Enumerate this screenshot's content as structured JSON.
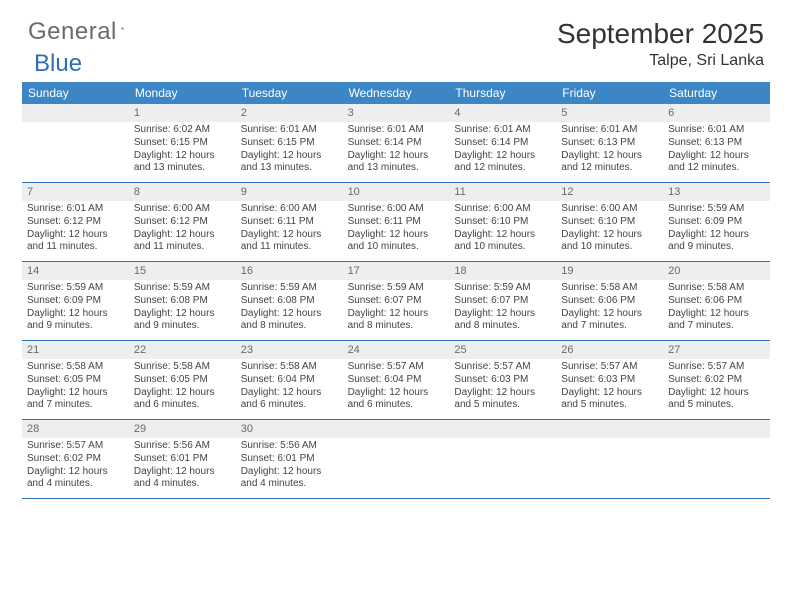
{
  "logo": {
    "part1": "General",
    "part2": "Blue"
  },
  "title": "September 2025",
  "location": "Talpe, Sri Lanka",
  "colors": {
    "header_bg": "#3d86c6",
    "week_border": "#2f6fb5",
    "daynum_bg": "#eceeef",
    "daynum_color": "#6a6a6a",
    "text": "#333333",
    "logo_gray": "#6b6b6b",
    "logo_blue": "#2f6fb5"
  },
  "typography": {
    "title_size_pt": 21,
    "location_size_pt": 12,
    "header_size_pt": 9,
    "cell_size_pt": 7.5
  },
  "day_headers": [
    "Sunday",
    "Monday",
    "Tuesday",
    "Wednesday",
    "Thursday",
    "Friday",
    "Saturday"
  ],
  "weeks": [
    [
      {
        "num": "",
        "empty": true
      },
      {
        "num": "1",
        "sunrise": "Sunrise: 6:02 AM",
        "sunset": "Sunset: 6:15 PM",
        "day1": "Daylight: 12 hours",
        "day2": "and 13 minutes."
      },
      {
        "num": "2",
        "sunrise": "Sunrise: 6:01 AM",
        "sunset": "Sunset: 6:15 PM",
        "day1": "Daylight: 12 hours",
        "day2": "and 13 minutes."
      },
      {
        "num": "3",
        "sunrise": "Sunrise: 6:01 AM",
        "sunset": "Sunset: 6:14 PM",
        "day1": "Daylight: 12 hours",
        "day2": "and 13 minutes."
      },
      {
        "num": "4",
        "sunrise": "Sunrise: 6:01 AM",
        "sunset": "Sunset: 6:14 PM",
        "day1": "Daylight: 12 hours",
        "day2": "and 12 minutes."
      },
      {
        "num": "5",
        "sunrise": "Sunrise: 6:01 AM",
        "sunset": "Sunset: 6:13 PM",
        "day1": "Daylight: 12 hours",
        "day2": "and 12 minutes."
      },
      {
        "num": "6",
        "sunrise": "Sunrise: 6:01 AM",
        "sunset": "Sunset: 6:13 PM",
        "day1": "Daylight: 12 hours",
        "day2": "and 12 minutes."
      }
    ],
    [
      {
        "num": "7",
        "sunrise": "Sunrise: 6:01 AM",
        "sunset": "Sunset: 6:12 PM",
        "day1": "Daylight: 12 hours",
        "day2": "and 11 minutes."
      },
      {
        "num": "8",
        "sunrise": "Sunrise: 6:00 AM",
        "sunset": "Sunset: 6:12 PM",
        "day1": "Daylight: 12 hours",
        "day2": "and 11 minutes."
      },
      {
        "num": "9",
        "sunrise": "Sunrise: 6:00 AM",
        "sunset": "Sunset: 6:11 PM",
        "day1": "Daylight: 12 hours",
        "day2": "and 11 minutes."
      },
      {
        "num": "10",
        "sunrise": "Sunrise: 6:00 AM",
        "sunset": "Sunset: 6:11 PM",
        "day1": "Daylight: 12 hours",
        "day2": "and 10 minutes."
      },
      {
        "num": "11",
        "sunrise": "Sunrise: 6:00 AM",
        "sunset": "Sunset: 6:10 PM",
        "day1": "Daylight: 12 hours",
        "day2": "and 10 minutes."
      },
      {
        "num": "12",
        "sunrise": "Sunrise: 6:00 AM",
        "sunset": "Sunset: 6:10 PM",
        "day1": "Daylight: 12 hours",
        "day2": "and 10 minutes."
      },
      {
        "num": "13",
        "sunrise": "Sunrise: 5:59 AM",
        "sunset": "Sunset: 6:09 PM",
        "day1": "Daylight: 12 hours",
        "day2": "and 9 minutes."
      }
    ],
    [
      {
        "num": "14",
        "sunrise": "Sunrise: 5:59 AM",
        "sunset": "Sunset: 6:09 PM",
        "day1": "Daylight: 12 hours",
        "day2": "and 9 minutes."
      },
      {
        "num": "15",
        "sunrise": "Sunrise: 5:59 AM",
        "sunset": "Sunset: 6:08 PM",
        "day1": "Daylight: 12 hours",
        "day2": "and 9 minutes."
      },
      {
        "num": "16",
        "sunrise": "Sunrise: 5:59 AM",
        "sunset": "Sunset: 6:08 PM",
        "day1": "Daylight: 12 hours",
        "day2": "and 8 minutes."
      },
      {
        "num": "17",
        "sunrise": "Sunrise: 5:59 AM",
        "sunset": "Sunset: 6:07 PM",
        "day1": "Daylight: 12 hours",
        "day2": "and 8 minutes."
      },
      {
        "num": "18",
        "sunrise": "Sunrise: 5:59 AM",
        "sunset": "Sunset: 6:07 PM",
        "day1": "Daylight: 12 hours",
        "day2": "and 8 minutes."
      },
      {
        "num": "19",
        "sunrise": "Sunrise: 5:58 AM",
        "sunset": "Sunset: 6:06 PM",
        "day1": "Daylight: 12 hours",
        "day2": "and 7 minutes."
      },
      {
        "num": "20",
        "sunrise": "Sunrise: 5:58 AM",
        "sunset": "Sunset: 6:06 PM",
        "day1": "Daylight: 12 hours",
        "day2": "and 7 minutes."
      }
    ],
    [
      {
        "num": "21",
        "sunrise": "Sunrise: 5:58 AM",
        "sunset": "Sunset: 6:05 PM",
        "day1": "Daylight: 12 hours",
        "day2": "and 7 minutes."
      },
      {
        "num": "22",
        "sunrise": "Sunrise: 5:58 AM",
        "sunset": "Sunset: 6:05 PM",
        "day1": "Daylight: 12 hours",
        "day2": "and 6 minutes."
      },
      {
        "num": "23",
        "sunrise": "Sunrise: 5:58 AM",
        "sunset": "Sunset: 6:04 PM",
        "day1": "Daylight: 12 hours",
        "day2": "and 6 minutes."
      },
      {
        "num": "24",
        "sunrise": "Sunrise: 5:57 AM",
        "sunset": "Sunset: 6:04 PM",
        "day1": "Daylight: 12 hours",
        "day2": "and 6 minutes."
      },
      {
        "num": "25",
        "sunrise": "Sunrise: 5:57 AM",
        "sunset": "Sunset: 6:03 PM",
        "day1": "Daylight: 12 hours",
        "day2": "and 5 minutes."
      },
      {
        "num": "26",
        "sunrise": "Sunrise: 5:57 AM",
        "sunset": "Sunset: 6:03 PM",
        "day1": "Daylight: 12 hours",
        "day2": "and 5 minutes."
      },
      {
        "num": "27",
        "sunrise": "Sunrise: 5:57 AM",
        "sunset": "Sunset: 6:02 PM",
        "day1": "Daylight: 12 hours",
        "day2": "and 5 minutes."
      }
    ],
    [
      {
        "num": "28",
        "sunrise": "Sunrise: 5:57 AM",
        "sunset": "Sunset: 6:02 PM",
        "day1": "Daylight: 12 hours",
        "day2": "and 4 minutes."
      },
      {
        "num": "29",
        "sunrise": "Sunrise: 5:56 AM",
        "sunset": "Sunset: 6:01 PM",
        "day1": "Daylight: 12 hours",
        "day2": "and 4 minutes."
      },
      {
        "num": "30",
        "sunrise": "Sunrise: 5:56 AM",
        "sunset": "Sunset: 6:01 PM",
        "day1": "Daylight: 12 hours",
        "day2": "and 4 minutes."
      },
      {
        "num": "",
        "empty": true
      },
      {
        "num": "",
        "empty": true
      },
      {
        "num": "",
        "empty": true
      },
      {
        "num": "",
        "empty": true
      }
    ]
  ]
}
